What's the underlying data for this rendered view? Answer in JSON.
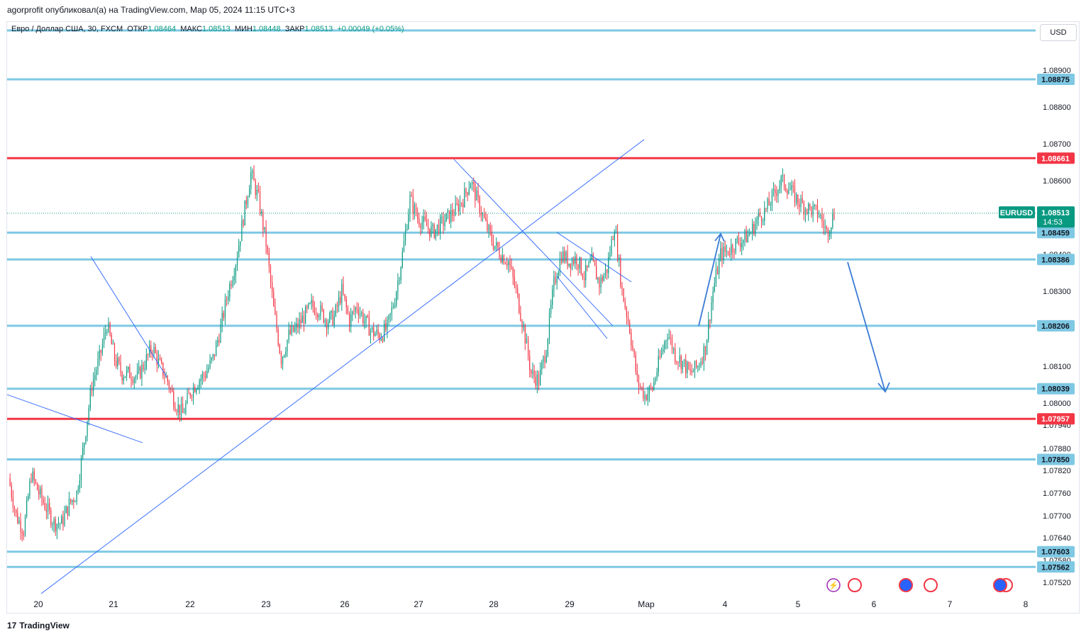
{
  "header": {
    "title": "agorprofit опубликовал(а) на TradingView.com, Мар 05, 2024 11:15 UTC+3"
  },
  "symbol": {
    "name": "Евро / Доллар США, 30, FXCM",
    "open_label": "ОТКР",
    "open": "1.08464",
    "high_label": "МАКС",
    "high": "1.08513",
    "low_label": "МИН",
    "low": "1.08448",
    "close_label": "ЗАКР",
    "close": "1.08513",
    "change": "+0.00049 (+0.05%)"
  },
  "currency_button": "USD",
  "footer": {
    "brand": "TradingView",
    "logo": "17"
  },
  "colors": {
    "level_blue": "#7ec8e3",
    "level_red": "#f23645",
    "trend": "#2962ff",
    "arrow": "#3a7bd5",
    "up": "#089981",
    "down": "#f23645",
    "price_tag": "#089981"
  },
  "chart_data": {
    "type": "candlestick",
    "symbol": "EURUSD",
    "interval": "30",
    "ylim": [
      1.0749,
      1.0896
    ],
    "y_ticks": [
      "1.08900",
      "1.08800",
      "1.08700",
      "1.08600",
      "1.08400",
      "1.08300",
      "1.08100",
      "1.08000",
      "1.07940",
      "1.07880",
      "1.07820",
      "1.07760",
      "1.07700",
      "1.07640",
      "1.07580",
      "1.07520"
    ],
    "x_ticks": [
      "20",
      "21",
      "22",
      "23",
      "26",
      "27",
      "28",
      "29",
      "Мар",
      "4",
      "5",
      "6",
      "7",
      "8"
    ],
    "current_price": "1.08513",
    "countdown": "14:53",
    "levels": [
      {
        "price": 1.09057,
        "color": "blue",
        "label": ""
      },
      {
        "price": 1.08875,
        "color": "blue",
        "label": "1.08875"
      },
      {
        "price": 1.08661,
        "color": "red",
        "label": "1.08661"
      },
      {
        "price": 1.08459,
        "color": "blue",
        "label": "1.08459"
      },
      {
        "price": 1.08386,
        "color": "blue",
        "label": "1.08386"
      },
      {
        "price": 1.08206,
        "color": "blue",
        "label": "1.08206"
      },
      {
        "price": 1.08039,
        "color": "blue",
        "label": "1.08039"
      },
      {
        "price": 1.07957,
        "color": "red",
        "label": "1.07957"
      },
      {
        "price": 1.0785,
        "color": "blue",
        "label": "1.07850"
      },
      {
        "price": 1.07603,
        "color": "blue",
        "label": "1.07603"
      },
      {
        "price": 1.07562,
        "color": "blue",
        "label": "1.07562"
      }
    ],
    "price_path": [
      [
        0,
        1.078
      ],
      [
        2,
        1.077
      ],
      [
        4,
        1.0766
      ],
      [
        6,
        1.0781
      ],
      [
        8,
        1.0776
      ],
      [
        10,
        1.0772
      ],
      [
        12,
        1.0768
      ],
      [
        14,
        1.0768
      ],
      [
        16,
        1.0773
      ],
      [
        18,
        1.0776
      ],
      [
        20,
        1.079
      ],
      [
        22,
        1.0805
      ],
      [
        24,
        1.0812
      ],
      [
        26,
        1.0821
      ],
      [
        28,
        1.0812
      ],
      [
        30,
        1.0808
      ],
      [
        32,
        1.0808
      ],
      [
        34,
        1.0807
      ],
      [
        36,
        1.0811
      ],
      [
        38,
        1.0815
      ],
      [
        40,
        1.081
      ],
      [
        42,
        1.0806
      ],
      [
        44,
        1.08
      ],
      [
        46,
        1.0797
      ],
      [
        48,
        1.0803
      ],
      [
        50,
        1.0806
      ],
      [
        52,
        1.0808
      ],
      [
        54,
        1.0812
      ],
      [
        56,
        1.082
      ],
      [
        58,
        1.083
      ],
      [
        60,
        1.0838
      ],
      [
        62,
        1.085
      ],
      [
        64,
        1.0862
      ],
      [
        66,
        1.0855
      ],
      [
        68,
        1.0843
      ],
      [
        70,
        1.0825
      ],
      [
        72,
        1.0812
      ],
      [
        74,
        1.0818
      ],
      [
        76,
        1.082
      ],
      [
        78,
        1.0823
      ],
      [
        80,
        1.0826
      ],
      [
        82,
        1.0825
      ],
      [
        84,
        1.0822
      ],
      [
        86,
        1.0823
      ],
      [
        88,
        1.083
      ],
      [
        90,
        1.0822
      ],
      [
        92,
        1.0826
      ],
      [
        94,
        1.0822
      ],
      [
        96,
        1.0819
      ],
      [
        98,
        1.0818
      ],
      [
        100,
        1.082
      ],
      [
        102,
        1.0828
      ],
      [
        104,
        1.084
      ],
      [
        106,
        1.0855
      ],
      [
        108,
        1.085
      ],
      [
        110,
        1.0848
      ],
      [
        112,
        1.0846
      ],
      [
        114,
        1.0848
      ],
      [
        116,
        1.085
      ],
      [
        118,
        1.0852
      ],
      [
        120,
        1.0855
      ],
      [
        122,
        1.086
      ],
      [
        124,
        1.0854
      ],
      [
        126,
        1.0848
      ],
      [
        128,
        1.0843
      ],
      [
        130,
        1.084
      ],
      [
        132,
        1.0838
      ],
      [
        134,
        1.083
      ],
      [
        136,
        1.082
      ],
      [
        138,
        1.0808
      ],
      [
        140,
        1.0806
      ],
      [
        142,
        1.0815
      ],
      [
        144,
        1.0832
      ],
      [
        146,
        1.084
      ],
      [
        148,
        1.0838
      ],
      [
        150,
        1.0839
      ],
      [
        152,
        1.0834
      ],
      [
        154,
        1.0838
      ],
      [
        156,
        1.0832
      ],
      [
        158,
        1.0836
      ],
      [
        160,
        1.0848
      ],
      [
        162,
        1.083
      ],
      [
        164,
        1.082
      ],
      [
        166,
        1.0806
      ],
      [
        168,
        1.0802
      ],
      [
        170,
        1.0804
      ],
      [
        172,
        1.0812
      ],
      [
        174,
        1.0819
      ],
      [
        176,
        1.0813
      ],
      [
        178,
        1.0811
      ],
      [
        180,
        1.0808
      ],
      [
        182,
        1.081
      ],
      [
        184,
        1.0815
      ],
      [
        186,
        1.083
      ],
      [
        188,
        1.084
      ],
      [
        190,
        1.0841
      ],
      [
        192,
        1.0843
      ],
      [
        194,
        1.0844
      ],
      [
        196,
        1.0846
      ],
      [
        198,
        1.085
      ],
      [
        200,
        1.0852
      ],
      [
        202,
        1.0856
      ],
      [
        204,
        1.086
      ],
      [
        206,
        1.0858
      ],
      [
        208,
        1.0855
      ],
      [
        210,
        1.0853
      ],
      [
        212,
        1.0852
      ],
      [
        214,
        1.0851
      ],
      [
        216,
        1.0846
      ],
      [
        218,
        1.0851
      ]
    ],
    "annotations": [
      "trend lines",
      "down arrow from 1.08386 to 1.08039",
      "up arrow to 1.08459"
    ]
  }
}
